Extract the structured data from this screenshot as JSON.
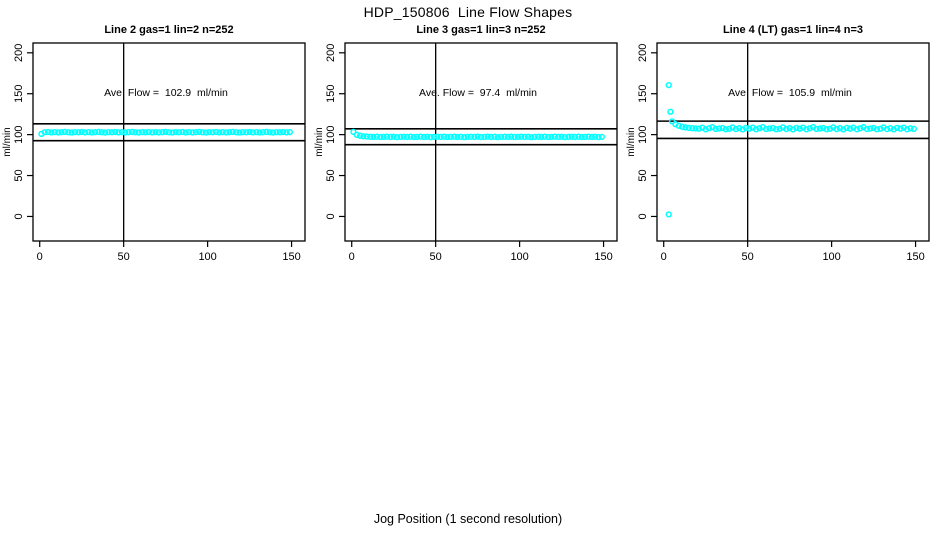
{
  "title": "HDP_150806  Line Flow Shapes",
  "xlabel": "Jog Position (1 second resolution)",
  "palette": {
    "marker": "#00FFFF",
    "axis": "#000000",
    "background": "#FFFFFF"
  },
  "chart_data": [
    {
      "type": "scatter",
      "title": "Line 2 gas=1 lin=2 n=252",
      "annotation": "Ave. Flow =  102.9  ml/min",
      "ave_flow_ml_min": 102.9,
      "ylabel": "ml/min",
      "xticks": [
        0,
        50,
        100,
        150
      ],
      "yticks": [
        0,
        50,
        100,
        150,
        200
      ],
      "xlim": [
        -4,
        158
      ],
      "ylim": [
        -30,
        212
      ],
      "vline_x": 50,
      "hlines": [
        113.2,
        92.6
      ],
      "series": {
        "name": "flow",
        "x_start": 1,
        "x_step": 2,
        "y": [
          100.9,
          102.9,
          103.2,
          102.8,
          103.1,
          102.7,
          103.0,
          103.3,
          102.9,
          102.6,
          103.1,
          102.9,
          103.2,
          102.8,
          103.1,
          102.7,
          103.0,
          103.3,
          102.9,
          102.6,
          103.1,
          102.9,
          103.2,
          102.8,
          103.1,
          102.7,
          103.0,
          103.3,
          102.9,
          102.6,
          103.1,
          102.9,
          103.2,
          102.8,
          103.1,
          102.7,
          103.0,
          103.3,
          102.9,
          102.6,
          103.1,
          102.9,
          103.2,
          102.8,
          103.1,
          102.7,
          103.0,
          103.3,
          102.9,
          102.6,
          103.1,
          102.9,
          103.2,
          102.8,
          103.1,
          102.7,
          103.0,
          103.3,
          102.9,
          102.6,
          103.1,
          102.9,
          103.2,
          102.8,
          103.1,
          102.7,
          103.0,
          103.3,
          102.9,
          102.6,
          103.1,
          102.9,
          103.2,
          102.8,
          103.0
        ]
      },
      "outliers": []
    },
    {
      "type": "scatter",
      "title": "Line 3 gas=1 lin=3 n=252",
      "annotation": "Ave. Flow =  97.4  ml/min",
      "ave_flow_ml_min": 97.4,
      "ylabel": "ml/min",
      "xticks": [
        0,
        50,
        100,
        150
      ],
      "yticks": [
        0,
        50,
        100,
        150,
        200
      ],
      "xlim": [
        -4,
        158
      ],
      "ylim": [
        -30,
        212
      ],
      "vline_x": 50,
      "hlines": [
        107.1,
        87.7
      ],
      "series": {
        "name": "flow",
        "x_start": 1,
        "x_step": 2,
        "y": [
          103.4,
          99.8,
          98.6,
          98.0,
          97.7,
          97.4,
          97.2,
          97.5,
          97.1,
          97.3,
          97.6,
          97.2,
          97.4,
          97.0,
          97.3,
          97.4,
          97.2,
          97.5,
          97.1,
          97.3,
          97.6,
          97.2,
          97.4,
          97.0,
          97.3,
          97.4,
          97.2,
          97.5,
          97.1,
          97.3,
          97.6,
          97.2,
          97.4,
          97.0,
          97.3,
          97.4,
          97.2,
          97.5,
          97.1,
          97.3,
          97.6,
          97.2,
          97.4,
          97.0,
          97.3,
          97.4,
          97.2,
          97.5,
          97.1,
          97.3,
          97.6,
          97.2,
          97.4,
          97.0,
          97.3,
          97.4,
          97.2,
          97.5,
          97.1,
          97.3,
          97.6,
          97.2,
          97.4,
          97.0,
          97.3,
          97.4,
          97.2,
          97.5,
          97.1,
          97.3,
          97.6,
          97.2,
          97.4,
          97.0,
          97.3
        ]
      },
      "outliers": []
    },
    {
      "type": "scatter",
      "title": "Line 4 (LT) gas=1 lin=4 n=3",
      "annotation": "Ave. Flow =  105.9  ml/min",
      "ave_flow_ml_min": 105.9,
      "ylabel": "ml/min",
      "xticks": [
        0,
        50,
        100,
        150
      ],
      "yticks": [
        0,
        50,
        100,
        150,
        200
      ],
      "xlim": [
        -4,
        158
      ],
      "ylim": [
        -30,
        212
      ],
      "vline_x": 50,
      "hlines": [
        116.5,
        95.3
      ],
      "series": {
        "name": "flow",
        "x_start": 5,
        "x_step": 2,
        "y": [
          116.2,
          112.8,
          110.9,
          109.6,
          108.8,
          108.3,
          107.9,
          107.6,
          107.3,
          108.6,
          106.5,
          107.8,
          109.2,
          106.9,
          107.5,
          108.1,
          106.6,
          107.2,
          108.8,
          106.8,
          107.9,
          106.4,
          108.3,
          107.3,
          108.6,
          106.5,
          107.8,
          109.2,
          106.9,
          107.5,
          108.1,
          106.6,
          107.2,
          108.8,
          106.8,
          107.9,
          106.4,
          108.3,
          107.3,
          108.6,
          106.5,
          107.8,
          109.2,
          106.9,
          107.5,
          108.1,
          106.6,
          107.2,
          108.8,
          106.8,
          107.9,
          106.4,
          108.3,
          107.3,
          108.6,
          106.5,
          107.8,
          109.2,
          106.9,
          107.5,
          108.1,
          106.6,
          107.2,
          108.8,
          106.8,
          107.9,
          106.4,
          108.3,
          107.3,
          108.6,
          106.5,
          107.8,
          107.0
        ]
      },
      "outliers": [
        [
          3,
          160.5
        ],
        [
          4,
          128.0
        ],
        [
          3,
          2.5
        ]
      ]
    }
  ]
}
